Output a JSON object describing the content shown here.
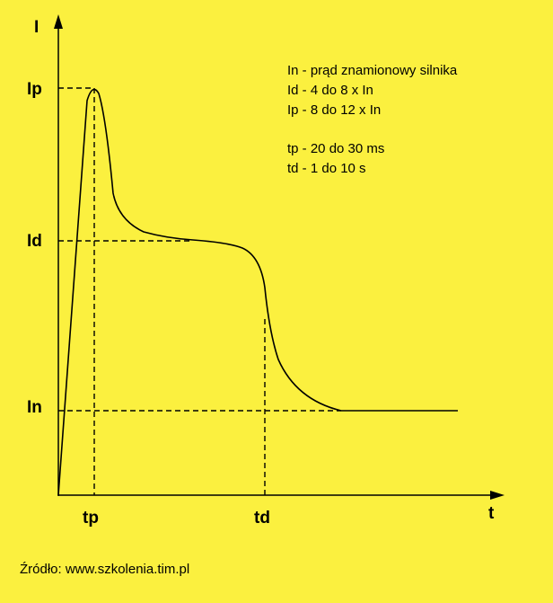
{
  "axes": {
    "y_label": "I",
    "x_label": "t"
  },
  "levels": [
    "Ip",
    "Id",
    "In"
  ],
  "times": [
    "tp",
    "td"
  ],
  "legend": [
    "In - prąd znamionowy silnika",
    "Id - 4 do 8 x In",
    "Ip - 8 do 12 x In",
    "tp - 20 do 30 ms",
    "td - 1 do 10 s"
  ],
  "source": "Źródło: www.szkolenia.tim.pl"
}
